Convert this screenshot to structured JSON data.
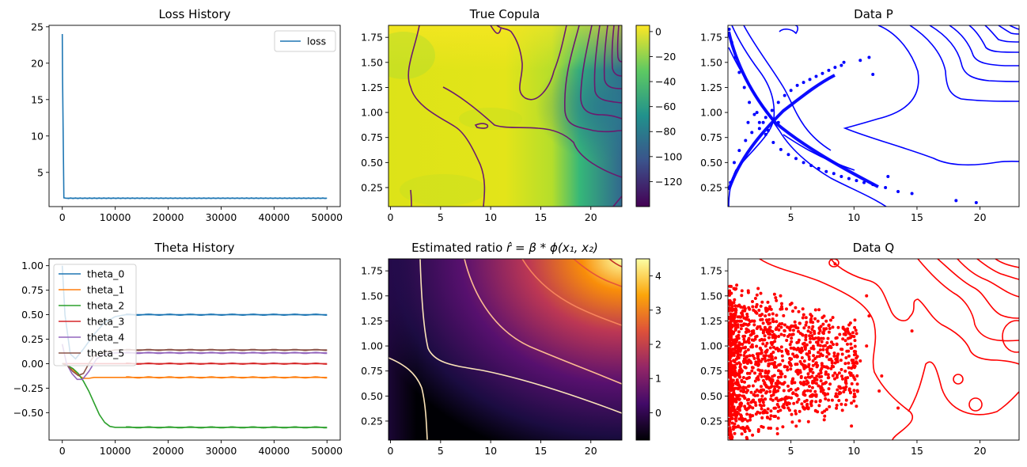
{
  "chart_data": [
    {
      "id": "loss",
      "type": "line",
      "title": "Loss History",
      "xlim": [
        -2500,
        52500
      ],
      "ylim": [
        0.3,
        25.2
      ],
      "xticks": [
        0,
        10000,
        20000,
        30000,
        40000,
        50000
      ],
      "xtick_labels": [
        "0",
        "10000",
        "20000",
        "30000",
        "40000",
        "50000"
      ],
      "yticks": [
        5,
        10,
        15,
        20,
        25
      ],
      "ytick_labels": [
        "5",
        "10",
        "15",
        "20",
        "25"
      ],
      "legend": {
        "placement": "upper-right",
        "entries": [
          "loss"
        ]
      },
      "series": [
        {
          "name": "loss",
          "color": "#1f77b4",
          "x": [
            0,
            50,
            300,
            700,
            1000,
            5000,
            10000,
            20000,
            30000,
            40000,
            50000
          ],
          "y": [
            24.0,
            18.0,
            1.5,
            1.45,
            1.45,
            1.45,
            1.45,
            1.45,
            1.45,
            1.45,
            1.45
          ]
        }
      ]
    },
    {
      "id": "true_copula",
      "type": "heatmap",
      "title": "True Copula",
      "xlim": [
        -0.2,
        23.1
      ],
      "ylim": [
        0.06,
        1.87
      ],
      "xticks": [
        0,
        5,
        10,
        15,
        20
      ],
      "xtick_labels": [
        "0",
        "5",
        "10",
        "15",
        "20"
      ],
      "yticks": [
        0.25,
        0.5,
        0.75,
        1.0,
        1.25,
        1.5,
        1.75
      ],
      "ytick_labels": [
        "0.25",
        "0.50",
        "0.75",
        "1.00",
        "1.25",
        "1.50",
        "1.75"
      ],
      "colormap": "viridis",
      "colorbar": {
        "range": [
          -140,
          5
        ],
        "ticks": [
          0,
          -20,
          -40,
          -60,
          -80,
          -100,
          -120
        ],
        "tick_labels": [
          "0",
          "−20",
          "−40",
          "−60",
          "−80",
          "−100",
          "−120"
        ]
      },
      "contour_color": "#6b1a6e"
    },
    {
      "id": "data_p",
      "type": "scatter",
      "title": "Data P",
      "xlim": [
        0.0,
        23.1
      ],
      "ylim": [
        0.06,
        1.87
      ],
      "xticks": [
        5,
        10,
        15,
        20
      ],
      "xtick_labels": [
        "5",
        "10",
        "15",
        "20"
      ],
      "yticks": [
        0.25,
        0.5,
        0.75,
        1.0,
        1.25,
        1.5,
        1.75
      ],
      "ytick_labels": [
        "0.25",
        "0.50",
        "0.75",
        "1.00",
        "1.25",
        "1.50",
        "1.75"
      ],
      "color": "#0000ff",
      "points": [
        [
          0.1,
          1.83
        ],
        [
          0.3,
          1.7
        ],
        [
          0.6,
          1.55
        ],
        [
          0.9,
          1.4
        ],
        [
          1.3,
          1.25
        ],
        [
          1.7,
          1.1
        ],
        [
          2.1,
          0.98
        ],
        [
          2.5,
          0.9
        ],
        [
          3.0,
          0.95
        ],
        [
          3.5,
          1.02
        ],
        [
          4.0,
          1.1
        ],
        [
          4.5,
          1.17
        ],
        [
          5.0,
          1.22
        ],
        [
          5.5,
          1.27
        ],
        [
          6.0,
          1.3
        ],
        [
          6.5,
          1.33
        ],
        [
          7.0,
          1.36
        ],
        [
          7.5,
          1.39
        ],
        [
          8.0,
          1.42
        ],
        [
          8.5,
          1.45
        ],
        [
          9.0,
          1.47
        ],
        [
          9.2,
          1.5
        ],
        [
          10.5,
          1.52
        ],
        [
          11.2,
          1.55
        ],
        [
          11.5,
          1.38
        ],
        [
          0.2,
          0.3
        ],
        [
          0.5,
          0.5
        ],
        [
          0.9,
          0.62
        ],
        [
          1.4,
          0.72
        ],
        [
          1.9,
          0.8
        ],
        [
          2.5,
          0.84
        ],
        [
          3.0,
          0.78
        ],
        [
          3.6,
          0.7
        ],
        [
          4.2,
          0.63
        ],
        [
          4.8,
          0.58
        ],
        [
          5.4,
          0.54
        ],
        [
          6.0,
          0.5
        ],
        [
          6.6,
          0.47
        ],
        [
          7.2,
          0.44
        ],
        [
          7.8,
          0.41
        ],
        [
          8.4,
          0.39
        ],
        [
          9.0,
          0.36
        ],
        [
          9.6,
          0.34
        ],
        [
          10.2,
          0.32
        ],
        [
          10.8,
          0.3
        ],
        [
          11.5,
          0.28
        ],
        [
          12.5,
          0.25
        ],
        [
          13.5,
          0.21
        ],
        [
          14.6,
          0.19
        ],
        [
          12.7,
          0.36
        ],
        [
          18.1,
          0.12
        ],
        [
          19.7,
          0.1
        ],
        [
          2.3,
          1.0
        ],
        [
          2.8,
          0.9
        ],
        [
          1.6,
          0.9
        ],
        [
          4.0,
          0.9
        ],
        [
          3.2,
          0.82
        ]
      ]
    },
    {
      "id": "theta",
      "type": "line",
      "title": "Theta History",
      "xlim": [
        -2500,
        52500
      ],
      "ylim": [
        -0.78,
        1.07
      ],
      "xticks": [
        0,
        10000,
        20000,
        30000,
        40000,
        50000
      ],
      "xtick_labels": [
        "0",
        "10000",
        "20000",
        "30000",
        "40000",
        "50000"
      ],
      "yticks": [
        -0.5,
        -0.25,
        0.0,
        0.25,
        0.5,
        0.75,
        1.0
      ],
      "ytick_labels": [
        "−0.50",
        "−0.25",
        "0.00",
        "0.25",
        "0.50",
        "0.75",
        "1.00"
      ],
      "legend": {
        "placement": "upper-left",
        "entries": [
          "theta_0",
          "theta_1",
          "theta_2",
          "theta_3",
          "theta_4",
          "theta_5"
        ]
      },
      "series": [
        {
          "name": "theta_0",
          "color": "#1f77b4",
          "x": [
            0,
            500,
            1500,
            2500,
            4000,
            6000,
            8000,
            10000,
            12000,
            20000,
            30000,
            40000,
            50000
          ],
          "y": [
            1.0,
            0.5,
            0.1,
            0.05,
            0.15,
            0.3,
            0.42,
            0.48,
            0.5,
            0.5,
            0.5,
            0.5,
            0.5
          ]
        },
        {
          "name": "theta_1",
          "color": "#ff7f0e",
          "x": [
            0,
            1000,
            2000,
            3000,
            4000,
            5000,
            6000,
            8000,
            10000,
            20000,
            30000,
            40000,
            50000
          ],
          "y": [
            0.0,
            -0.02,
            -0.06,
            -0.12,
            -0.15,
            -0.15,
            -0.14,
            -0.14,
            -0.14,
            -0.14,
            -0.14,
            -0.14,
            -0.14
          ]
        },
        {
          "name": "theta_2",
          "color": "#2ca02c",
          "x": [
            0,
            1000,
            2000,
            3000,
            4000,
            5000,
            6000,
            7000,
            8000,
            9000,
            10000,
            11000,
            20000,
            30000,
            40000,
            50000
          ],
          "y": [
            0.0,
            -0.02,
            -0.05,
            -0.1,
            -0.18,
            -0.28,
            -0.4,
            -0.52,
            -0.6,
            -0.64,
            -0.65,
            -0.65,
            -0.65,
            -0.65,
            -0.65,
            -0.65
          ]
        },
        {
          "name": "theta_3",
          "color": "#d62728",
          "x": [
            0,
            10000,
            20000,
            30000,
            40000,
            50000
          ],
          "y": [
            0.0,
            0.0,
            0.0,
            0.0,
            0.0,
            0.0
          ]
        },
        {
          "name": "theta_4",
          "color": "#9467bd",
          "x": [
            0,
            800,
            1800,
            2800,
            3800,
            5000,
            6500,
            8000,
            10000,
            20000,
            30000,
            40000,
            50000
          ],
          "y": [
            0.2,
            0.0,
            -0.1,
            -0.16,
            -0.16,
            -0.08,
            0.05,
            0.1,
            0.11,
            0.11,
            0.11,
            0.11,
            0.11
          ]
        },
        {
          "name": "theta_5",
          "color": "#8c564b",
          "x": [
            0,
            1000,
            2000,
            3000,
            4000,
            5000,
            6000,
            8000,
            10000,
            20000,
            30000,
            40000,
            50000
          ],
          "y": [
            0.0,
            -0.02,
            -0.08,
            -0.12,
            -0.1,
            0.0,
            0.08,
            0.12,
            0.14,
            0.14,
            0.14,
            0.14,
            0.14
          ]
        }
      ]
    },
    {
      "id": "estimated_ratio",
      "type": "heatmap",
      "title": "Estimated ratio r̂ = β * ϕ(x₁, x₂)",
      "title_parts": {
        "prefix": "Estimated ratio ",
        "r": "r̂",
        "eq": " = ",
        "beta": "β",
        "star": " * ",
        "phi": "ϕ",
        "args": "(x₁, x₂)"
      },
      "xlim": [
        -0.2,
        23.1
      ],
      "ylim": [
        0.06,
        1.87
      ],
      "xticks": [
        0,
        5,
        10,
        15,
        20
      ],
      "xtick_labels": [
        "0",
        "5",
        "10",
        "15",
        "20"
      ],
      "yticks": [
        0.25,
        0.5,
        0.75,
        1.0,
        1.25,
        1.5,
        1.75
      ],
      "ytick_labels": [
        "0.25",
        "0.50",
        "0.75",
        "1.00",
        "1.25",
        "1.50",
        "1.75"
      ],
      "colormap": "inferno",
      "colorbar": {
        "range": [
          -0.8,
          4.5
        ],
        "ticks": [
          0,
          1,
          2,
          3,
          4
        ],
        "tick_labels": [
          "0",
          "1",
          "2",
          "3",
          "4"
        ]
      }
    },
    {
      "id": "data_q",
      "type": "scatter",
      "title": "Data Q",
      "xlim": [
        0.0,
        23.1
      ],
      "ylim": [
        0.06,
        1.87
      ],
      "xticks": [
        5,
        10,
        15,
        20
      ],
      "xtick_labels": [
        "5",
        "10",
        "15",
        "20"
      ],
      "yticks": [
        0.25,
        0.5,
        0.75,
        1.0,
        1.25,
        1.5,
        1.75
      ],
      "ytick_labels": [
        "0.25",
        "0.50",
        "0.75",
        "1.00",
        "1.25",
        "1.50",
        "1.75"
      ],
      "color": "#ff0000",
      "points": [
        [
          8.5,
          1.82
        ],
        [
          11.0,
          1.5
        ],
        [
          11.2,
          1.3
        ],
        [
          14.6,
          1.15
        ],
        [
          13.5,
          0.38
        ],
        [
          12.0,
          0.55
        ],
        [
          12.2,
          0.7
        ],
        [
          10.5,
          0.85
        ],
        [
          11.0,
          1.0
        ],
        [
          10.0,
          0.45
        ],
        [
          9.8,
          0.2
        ]
      ]
    }
  ]
}
